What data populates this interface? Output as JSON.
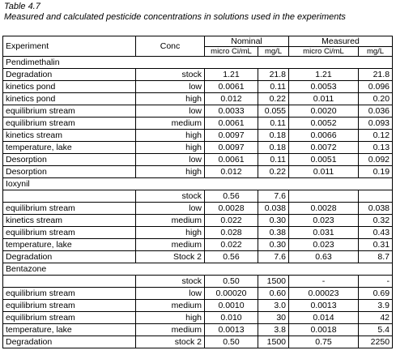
{
  "caption": {
    "title": "Table 4.7",
    "subtitle": "Measured and calculated pesticide concentrations in solutions used in the experiments"
  },
  "header": {
    "experiment": "Experiment",
    "conc": "Conc",
    "nominal": "Nominal",
    "measured": "Measured",
    "unit1": "micro Ci/mL",
    "unit2": "mg/L",
    "unit3": "micro Ci/mL",
    "unit4": "mg/L"
  },
  "groups": [
    {
      "name": "Pendimethalin",
      "rows": [
        [
          "Degradation",
          "stock",
          "1.21",
          "21.8",
          "1.21",
          "21.8"
        ],
        [
          "kinetics pond",
          "low",
          "0.0061",
          "0.11",
          "0.0053",
          "0.096"
        ],
        [
          "kinetics pond",
          "high",
          "0.012",
          "0.22",
          "0.011",
          "0.20"
        ],
        [
          "equilibrium stream",
          "low",
          "0.0033",
          "0.055",
          "0.0020",
          "0.036"
        ],
        [
          "equilibrium stream",
          "medium",
          "0.0061",
          "0.11",
          "0.0052",
          "0.093"
        ],
        [
          "kinetics stream",
          "high",
          "0.0097",
          "0.18",
          "0.0066",
          "0.12"
        ],
        [
          "temperature, lake",
          "high",
          "0.0097",
          "0.18",
          "0.0072",
          "0.13"
        ],
        [
          "Desorption",
          "low",
          "0.0061",
          "0.11",
          "0.0051",
          "0.092"
        ],
        [
          "Desorption",
          "high",
          "0.012",
          "0.22",
          "0.011",
          "0.19"
        ]
      ]
    },
    {
      "name": "Ioxynil",
      "rows": [
        [
          "",
          "stock",
          "0.56",
          "7.6",
          "",
          ""
        ],
        [
          "equilibrium stream",
          "low",
          "0.0028",
          "0.038",
          "0.0028",
          "0.038"
        ],
        [
          "kinetics stream",
          "medium",
          "0.022",
          "0.30",
          "0.023",
          "0.32"
        ],
        [
          "equilibrium stream",
          "high",
          "0.028",
          "0.38",
          "0.031",
          "0.43"
        ],
        [
          "temperature, lake",
          "medium",
          "0.022",
          "0.30",
          "0.023",
          "0.31"
        ],
        [
          "Degradation",
          "Stock 2",
          "0.56",
          "7.6",
          "0.63",
          "8.7"
        ]
      ]
    },
    {
      "name": "Bentazone",
      "rows": [
        [
          "",
          "stock",
          "0.50",
          "1500",
          "-",
          "-"
        ],
        [
          "equilibrium stream",
          "low",
          "0.00020",
          "0.60",
          "0.00023",
          "0.69"
        ],
        [
          "equilibrium stream",
          "medium",
          "0.0010",
          "3.0",
          "0.0013",
          "3.9"
        ],
        [
          "equilibrium stream",
          "high",
          "0.010",
          "30",
          "0.014",
          "42"
        ],
        [
          "temperature, lake",
          "medium",
          "0.0013",
          "3.8",
          "0.0018",
          "5.4"
        ],
        [
          "Degradation",
          "stock 2",
          "0.50",
          "1500",
          "0.75",
          "2250"
        ]
      ]
    }
  ]
}
